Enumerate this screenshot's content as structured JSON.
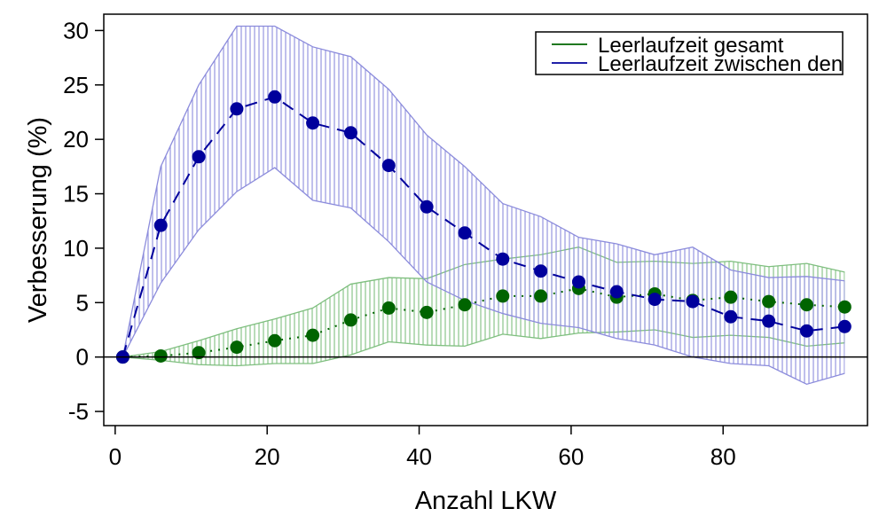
{
  "chart_data": {
    "type": "scatter",
    "title": "",
    "xlabel": "Anzahl LKW",
    "ylabel": "Verbesserung (%)",
    "xlim": [
      -1.5,
      99
    ],
    "ylim": [
      -6.3,
      31.5
    ],
    "xticks": [
      0,
      20,
      40,
      60,
      80
    ],
    "yticks": [
      -5,
      0,
      5,
      10,
      15,
      20,
      25,
      30
    ],
    "reference_line_y": 0,
    "grid": false,
    "legend_position": "top-right",
    "x": [
      1,
      6,
      11,
      16,
      21,
      26,
      31,
      36,
      41,
      46,
      51,
      56,
      61,
      66,
      71,
      76,
      81,
      86,
      91,
      96
    ],
    "series": [
      {
        "name": "Leerlaufzeit gesamt",
        "color": "#006400",
        "band_color": "#7fbf7f",
        "line_style": "dotted",
        "values": [
          0,
          0.1,
          0.4,
          0.9,
          1.5,
          2.0,
          3.4,
          4.5,
          4.1,
          4.8,
          5.6,
          5.6,
          6.3,
          5.5,
          5.8,
          5.2,
          5.5,
          5.1,
          4.8,
          4.6
        ],
        "upper": [
          0,
          0.5,
          1.5,
          2.6,
          3.5,
          4.5,
          6.7,
          7.3,
          7.2,
          8.5,
          9.0,
          9.4,
          10.1,
          8.7,
          8.8,
          8.6,
          8.8,
          8.3,
          8.6,
          7.8
        ],
        "lower": [
          0,
          -0.3,
          -0.7,
          -0.8,
          -0.6,
          -0.6,
          0.2,
          1.4,
          1.1,
          1.0,
          2.1,
          1.7,
          2.2,
          2.3,
          2.5,
          1.8,
          2.0,
          1.8,
          1.0,
          1.3
        ]
      },
      {
        "name": "Leerlaufzeit zwischen den",
        "color": "#00009c",
        "band_color": "#8c8cdc",
        "line_style": "dashed",
        "values": [
          0,
          12.1,
          18.4,
          22.8,
          23.9,
          21.5,
          20.6,
          17.6,
          13.8,
          11.4,
          9.0,
          7.9,
          6.9,
          6.0,
          5.3,
          5.1,
          3.7,
          3.3,
          2.4,
          2.8
        ],
        "upper": [
          0,
          17.5,
          25.0,
          30.4,
          30.4,
          28.5,
          27.6,
          24.6,
          20.4,
          17.5,
          14.1,
          12.9,
          11.0,
          10.4,
          9.4,
          10.1,
          8.0,
          7.3,
          7.4,
          7.0
        ],
        "lower": [
          0,
          6.8,
          11.7,
          15.2,
          17.4,
          14.4,
          13.7,
          10.6,
          6.9,
          5.2,
          4.0,
          3.1,
          2.7,
          1.7,
          1.1,
          0.0,
          -0.6,
          -0.8,
          -2.5,
          -1.5
        ]
      }
    ]
  }
}
